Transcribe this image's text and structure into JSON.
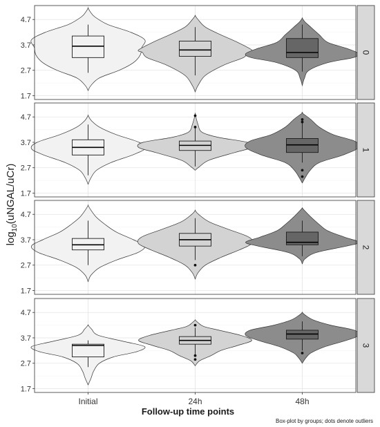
{
  "chart_data": {
    "type": "violin",
    "ylabel_main": "log",
    "ylabel_sub": "10",
    "ylabel_rest": "(uNGAL/uCr)",
    "xlabel": "Follow-up time points",
    "caption": "Box-plot by groups; dots denote outliers",
    "categories": [
      "Initial",
      "24h",
      "48h"
    ],
    "yticks": [
      1.7,
      2.7,
      3.7,
      4.7
    ],
    "ytick_labels": [
      "1.7",
      "2.7",
      "3.7",
      "4.7"
    ],
    "ylim": [
      1.55,
      5.25
    ],
    "fills": [
      "#f2f2f2",
      "#d3d3d3",
      "#8c8c8c"
    ],
    "box_fills": [
      "#f2f2f2",
      "#d3d3d3",
      "#666666"
    ],
    "grid": true,
    "facets": [
      {
        "label": "0",
        "groups": [
          {
            "q1": 3.2,
            "median": 3.65,
            "q3": 4.05,
            "whisker_low": 2.6,
            "whisker_high": 4.5,
            "outliers": [],
            "vmin": 1.9,
            "vmax": 5.15,
            "profile": [
              [
                1.9,
                0.0
              ],
              [
                2.1,
                0.05
              ],
              [
                2.4,
                0.2
              ],
              [
                2.7,
                0.55
              ],
              [
                3.0,
                0.8
              ],
              [
                3.3,
                0.92
              ],
              [
                3.6,
                0.95
              ],
              [
                3.9,
                1.0
              ],
              [
                4.2,
                0.75
              ],
              [
                4.5,
                0.35
              ],
              [
                4.8,
                0.12
              ],
              [
                5.0,
                0.04
              ],
              [
                5.15,
                0.0
              ]
            ]
          },
          {
            "q1": 3.25,
            "median": 3.5,
            "q3": 3.85,
            "whisker_low": 2.5,
            "whisker_high": 4.4,
            "outliers": [],
            "vmin": 1.85,
            "vmax": 4.85,
            "profile": [
              [
                1.85,
                0.0
              ],
              [
                2.1,
                0.05
              ],
              [
                2.5,
                0.18
              ],
              [
                2.9,
                0.5
              ],
              [
                3.2,
                0.85
              ],
              [
                3.4,
                0.93
              ],
              [
                3.5,
                1.0
              ],
              [
                3.8,
                0.75
              ],
              [
                4.1,
                0.45
              ],
              [
                4.4,
                0.18
              ],
              [
                4.7,
                0.05
              ],
              [
                4.85,
                0.0
              ]
            ]
          },
          {
            "q1": 3.2,
            "median": 3.4,
            "q3": 3.95,
            "whisker_low": 2.65,
            "whisker_high": 4.5,
            "outliers": [],
            "vmin": 2.1,
            "vmax": 4.75,
            "profile": [
              [
                2.1,
                0.0
              ],
              [
                2.4,
                0.04
              ],
              [
                2.7,
                0.12
              ],
              [
                3.0,
                0.45
              ],
              [
                3.2,
                0.9
              ],
              [
                3.35,
                1.0
              ],
              [
                3.55,
                0.8
              ],
              [
                3.8,
                0.45
              ],
              [
                4.1,
                0.3
              ],
              [
                4.4,
                0.15
              ],
              [
                4.6,
                0.05
              ],
              [
                4.75,
                0.0
              ]
            ]
          }
        ]
      },
      {
        "label": "1",
        "groups": [
          {
            "q1": 3.2,
            "median": 3.5,
            "q3": 3.8,
            "whisker_low": 2.4,
            "whisker_high": 4.4,
            "outliers": [],
            "vmin": 2.05,
            "vmax": 4.75,
            "profile": [
              [
                2.05,
                0.0
              ],
              [
                2.3,
                0.05
              ],
              [
                2.6,
                0.15
              ],
              [
                2.9,
                0.4
              ],
              [
                3.2,
                0.78
              ],
              [
                3.45,
                1.0
              ],
              [
                3.7,
                0.9
              ],
              [
                4.0,
                0.5
              ],
              [
                4.3,
                0.2
              ],
              [
                4.55,
                0.06
              ],
              [
                4.75,
                0.0
              ]
            ]
          },
          {
            "q1": 3.38,
            "median": 3.58,
            "q3": 3.75,
            "whisker_low": 2.75,
            "whisker_high": 4.35,
            "outliers": [
              4.75,
              4.3
            ],
            "vmin": 2.6,
            "vmax": 4.8,
            "profile": [
              [
                2.6,
                0.0
              ],
              [
                2.75,
                0.08
              ],
              [
                3.0,
                0.25
              ],
              [
                3.3,
                0.7
              ],
              [
                3.5,
                1.0
              ],
              [
                3.7,
                0.92
              ],
              [
                3.9,
                0.4
              ],
              [
                4.1,
                0.12
              ],
              [
                4.4,
                0.05
              ],
              [
                4.8,
                0.0
              ]
            ]
          },
          {
            "q1": 3.3,
            "median": 3.6,
            "q3": 3.85,
            "whisker_low": 2.9,
            "whisker_high": 4.45,
            "outliers": [
              4.6,
              4.5,
              2.6,
              2.35
            ],
            "vmin": 2.1,
            "vmax": 4.85,
            "profile": [
              [
                2.1,
                0.0
              ],
              [
                2.3,
                0.05
              ],
              [
                2.6,
                0.14
              ],
              [
                2.9,
                0.3
              ],
              [
                3.2,
                0.72
              ],
              [
                3.5,
                1.0
              ],
              [
                3.75,
                0.92
              ],
              [
                4.0,
                0.55
              ],
              [
                4.3,
                0.3
              ],
              [
                4.6,
                0.15
              ],
              [
                4.85,
                0.0
              ]
            ]
          }
        ]
      },
      {
        "label": "2",
        "groups": [
          {
            "q1": 3.3,
            "median": 3.5,
            "q3": 3.75,
            "whisker_low": 2.7,
            "whisker_high": 4.45,
            "outliers": [],
            "vmin": 2.05,
            "vmax": 5.05,
            "profile": [
              [
                2.05,
                0.0
              ],
              [
                2.3,
                0.05
              ],
              [
                2.6,
                0.2
              ],
              [
                2.9,
                0.5
              ],
              [
                3.2,
                0.88
              ],
              [
                3.45,
                1.0
              ],
              [
                3.7,
                0.8
              ],
              [
                4.0,
                0.5
              ],
              [
                4.3,
                0.3
              ],
              [
                4.6,
                0.14
              ],
              [
                4.9,
                0.04
              ],
              [
                5.05,
                0.0
              ]
            ]
          },
          {
            "q1": 3.45,
            "median": 3.7,
            "q3": 3.95,
            "whisker_low": 2.9,
            "whisker_high": 4.55,
            "outliers": [
              2.7
            ],
            "vmin": 2.15,
            "vmax": 4.85,
            "profile": [
              [
                2.15,
                0.0
              ],
              [
                2.4,
                0.05
              ],
              [
                2.7,
                0.18
              ],
              [
                3.0,
                0.45
              ],
              [
                3.3,
                0.78
              ],
              [
                3.55,
                1.0
              ],
              [
                3.8,
                0.95
              ],
              [
                4.1,
                0.6
              ],
              [
                4.4,
                0.25
              ],
              [
                4.7,
                0.06
              ],
              [
                4.85,
                0.0
              ]
            ]
          },
          {
            "q1": 3.5,
            "median": 3.6,
            "q3": 4.0,
            "whisker_low": 3.05,
            "whisker_high": 4.45,
            "outliers": [],
            "vmin": 2.75,
            "vmax": 4.95,
            "profile": [
              [
                2.75,
                0.0
              ],
              [
                2.95,
                0.05
              ],
              [
                3.2,
                0.25
              ],
              [
                3.45,
                0.78
              ],
              [
                3.6,
                1.0
              ],
              [
                3.8,
                0.75
              ],
              [
                4.05,
                0.45
              ],
              [
                4.3,
                0.3
              ],
              [
                4.6,
                0.15
              ],
              [
                4.85,
                0.04
              ],
              [
                4.95,
                0.0
              ]
            ]
          }
        ]
      },
      {
        "label": "3",
        "groups": [
          {
            "q1": 2.95,
            "median": 3.4,
            "q3": 3.45,
            "whisker_low": 2.55,
            "whisker_high": 3.6,
            "outliers": [],
            "vmin": 1.85,
            "vmax": 4.2,
            "profile": [
              [
                1.85,
                0.0
              ],
              [
                2.1,
                0.05
              ],
              [
                2.4,
                0.1
              ],
              [
                2.7,
                0.2
              ],
              [
                2.95,
                0.45
              ],
              [
                3.15,
                0.85
              ],
              [
                3.35,
                1.0
              ],
              [
                3.55,
                0.65
              ],
              [
                3.8,
                0.18
              ],
              [
                4.05,
                0.06
              ],
              [
                4.2,
                0.0
              ]
            ]
          },
          {
            "q1": 3.45,
            "median": 3.6,
            "q3": 3.75,
            "whisker_low": 3.05,
            "whisker_high": 4.1,
            "outliers": [
              4.2,
              3.0,
              2.85
            ],
            "vmin": 2.6,
            "vmax": 4.4,
            "profile": [
              [
                2.6,
                0.0
              ],
              [
                2.8,
                0.08
              ],
              [
                3.0,
                0.28
              ],
              [
                3.2,
                0.45
              ],
              [
                3.4,
                0.75
              ],
              [
                3.6,
                1.0
              ],
              [
                3.8,
                0.8
              ],
              [
                4.0,
                0.42
              ],
              [
                4.15,
                0.15
              ],
              [
                4.3,
                0.05
              ],
              [
                4.4,
                0.0
              ]
            ]
          },
          {
            "q1": 3.65,
            "median": 3.85,
            "q3": 4.0,
            "whisker_low": 3.2,
            "whisker_high": 4.35,
            "outliers": [
              3.1
            ],
            "vmin": 2.7,
            "vmax": 4.7,
            "profile": [
              [
                2.7,
                0.0
              ],
              [
                2.9,
                0.06
              ],
              [
                3.1,
                0.15
              ],
              [
                3.35,
                0.4
              ],
              [
                3.6,
                0.78
              ],
              [
                3.8,
                1.0
              ],
              [
                4.0,
                0.92
              ],
              [
                4.2,
                0.5
              ],
              [
                4.4,
                0.2
              ],
              [
                4.6,
                0.05
              ],
              [
                4.7,
                0.0
              ]
            ]
          }
        ]
      }
    ]
  }
}
